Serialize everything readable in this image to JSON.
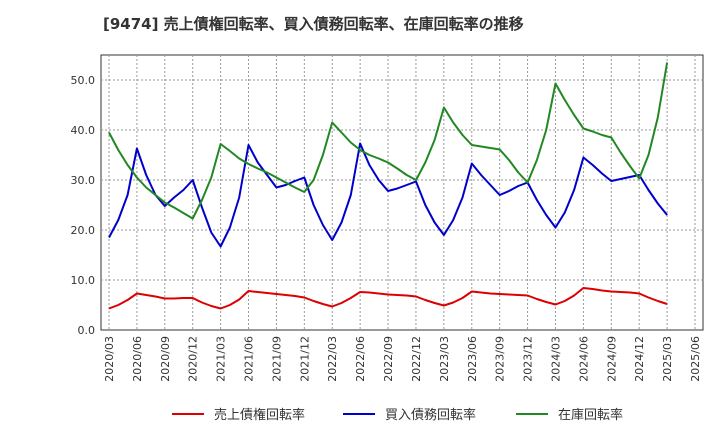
{
  "chart_data": {
    "type": "line",
    "title": "[9474]  売上債権回転率、買入債務回転率、在庫回転率の推移",
    "xlabel": "",
    "ylabel": "",
    "ylim": [
      0,
      55
    ],
    "yticks": [
      "0.0",
      "10.0",
      "20.0",
      "30.0",
      "40.0",
      "50.0"
    ],
    "grid": true,
    "legend_position": "bottom",
    "x_ticks": [
      "2020/03",
      "2020/06",
      "2020/09",
      "2020/12",
      "2021/03",
      "2021/06",
      "2021/09",
      "2021/12",
      "2022/03",
      "2022/06",
      "2022/09",
      "2022/12",
      "2023/03",
      "2023/06",
      "2023/09",
      "2023/12",
      "2024/03",
      "2024/06",
      "2024/09",
      "2024/12",
      "2025/03",
      "2025/06"
    ],
    "x": [
      "2020/03",
      "2020/04",
      "2020/05",
      "2020/06",
      "2020/07",
      "2020/08",
      "2020/09",
      "2020/10",
      "2020/11",
      "2020/12",
      "2021/01",
      "2021/02",
      "2021/03",
      "2021/04",
      "2021/05",
      "2021/06",
      "2021/07",
      "2021/08",
      "2021/09",
      "2021/10",
      "2021/11",
      "2021/12",
      "2022/01",
      "2022/02",
      "2022/03",
      "2022/04",
      "2022/05",
      "2022/06",
      "2022/07",
      "2022/08",
      "2022/09",
      "2022/10",
      "2022/11",
      "2022/12",
      "2023/01",
      "2023/02",
      "2023/03",
      "2023/04",
      "2023/05",
      "2023/06",
      "2023/07",
      "2023/08",
      "2023/09",
      "2023/10",
      "2023/11",
      "2023/12",
      "2024/01",
      "2024/02",
      "2024/03",
      "2024/04",
      "2024/05",
      "2024/06",
      "2024/07",
      "2024/08",
      "2024/09",
      "2024/10",
      "2024/11",
      "2024/12",
      "2025/01",
      "2025/02",
      "2025/03"
    ],
    "series": [
      {
        "name": "売上債権回転率",
        "color": "#dd0000",
        "values": [
          4.3,
          5.0,
          6.0,
          7.3,
          7.0,
          6.7,
          6.3,
          6.3,
          6.4,
          6.4,
          5.5,
          4.8,
          4.3,
          5.0,
          6.1,
          7.8,
          7.6,
          7.4,
          7.2,
          7.0,
          6.8,
          6.5,
          5.8,
          5.2,
          4.7,
          5.4,
          6.4,
          7.6,
          7.5,
          7.3,
          7.1,
          7.0,
          6.9,
          6.7,
          6.0,
          5.4,
          4.9,
          5.5,
          6.4,
          7.7,
          7.5,
          7.3,
          7.2,
          7.1,
          7.0,
          6.9,
          6.2,
          5.6,
          5.1,
          5.8,
          6.9,
          8.4,
          8.2,
          7.9,
          7.7,
          7.6,
          7.5,
          7.3,
          6.5,
          5.8,
          5.2
        ]
      },
      {
        "name": "買入債務回転率",
        "color": "#0000cc",
        "values": [
          18.5,
          22.0,
          27.0,
          36.3,
          31.0,
          27.0,
          24.8,
          26.5,
          28.0,
          30.0,
          24.5,
          19.5,
          16.7,
          20.5,
          26.5,
          37.0,
          33.5,
          31.0,
          28.5,
          29.0,
          29.8,
          30.5,
          25.0,
          21.0,
          18.0,
          21.5,
          27.0,
          37.3,
          33.0,
          30.0,
          27.8,
          28.3,
          29.0,
          29.7,
          25.0,
          21.5,
          19.0,
          22.0,
          26.5,
          33.3,
          31.0,
          29.0,
          27.0,
          27.8,
          28.8,
          29.5,
          26.0,
          23.0,
          20.5,
          23.5,
          28.0,
          34.5,
          33.0,
          31.3,
          29.8,
          30.2,
          30.6,
          31.0,
          28.0,
          25.3,
          23.0
        ]
      },
      {
        "name": "在庫回転率",
        "color": "#228822",
        "values": [
          39.5,
          36.0,
          33.0,
          30.5,
          28.5,
          27.0,
          25.5,
          24.5,
          23.4,
          22.3,
          26.0,
          30.5,
          37.2,
          35.8,
          34.3,
          33.2,
          32.3,
          31.5,
          30.5,
          29.5,
          28.5,
          27.6,
          30.0,
          35.0,
          41.5,
          39.5,
          37.5,
          36.0,
          35.0,
          34.3,
          33.5,
          32.3,
          31.0,
          30.0,
          33.5,
          38.0,
          44.5,
          41.5,
          39.0,
          37.0,
          36.7,
          36.4,
          36.1,
          34.0,
          31.5,
          29.5,
          34.0,
          40.0,
          49.3,
          46.0,
          43.0,
          40.3,
          39.7,
          39.0,
          38.5,
          35.5,
          32.8,
          30.3,
          35.0,
          42.5,
          53.5
        ]
      }
    ]
  }
}
